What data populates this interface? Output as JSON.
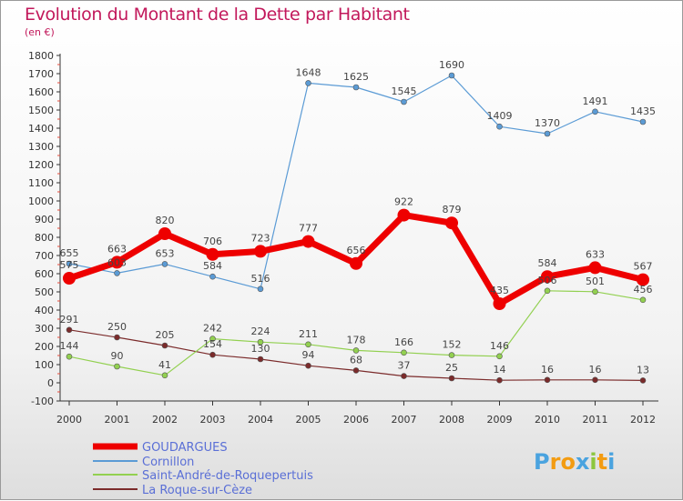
{
  "chart_data": {
    "type": "line",
    "title": "Evolution du Montant de la Dette par Habitant",
    "subtitle": "(en €)",
    "x": [
      "2000",
      "2001",
      "2002",
      "2003",
      "2004",
      "2005",
      "2006",
      "2007",
      "2008",
      "2009",
      "2010",
      "2011",
      "2012"
    ],
    "ylim": [
      -100,
      1800
    ],
    "yticks": [
      -100,
      0,
      100,
      200,
      300,
      400,
      500,
      600,
      700,
      800,
      900,
      1000,
      1100,
      1200,
      1300,
      1400,
      1500,
      1600,
      1700,
      1800
    ],
    "grid": false,
    "legend_position": "bottom-left",
    "series": [
      {
        "name": "GOUDARGUES",
        "color": "#ee0000",
        "values": [
          575,
          663,
          820,
          706,
          723,
          777,
          656,
          922,
          879,
          435,
          584,
          633,
          567
        ]
      },
      {
        "name": "Cornillon",
        "color": "#5b9bd5",
        "values": [
          655,
          603,
          653,
          584,
          516,
          1648,
          1625,
          1545,
          1690,
          1409,
          1370,
          1491,
          1435
        ]
      },
      {
        "name": "Saint-André-de-Roquepertuis",
        "color": "#92d050",
        "values": [
          144,
          90,
          41,
          242,
          224,
          211,
          178,
          166,
          152,
          146,
          506,
          501,
          456
        ]
      },
      {
        "name": "La Roque-sur-Cèze",
        "color": "#7b2b2b",
        "values": [
          291,
          250,
          205,
          154,
          130,
          94,
          68,
          37,
          25,
          14,
          16,
          16,
          13
        ]
      }
    ]
  },
  "logo": {
    "letters": [
      "P",
      "r",
      "o",
      "x",
      "i",
      "t",
      "i"
    ],
    "colors": [
      "#4aa3df",
      "#f39c12",
      "#f39c12",
      "#4aa3df",
      "#8cc63f",
      "#f39c12",
      "#4aa3df"
    ]
  }
}
